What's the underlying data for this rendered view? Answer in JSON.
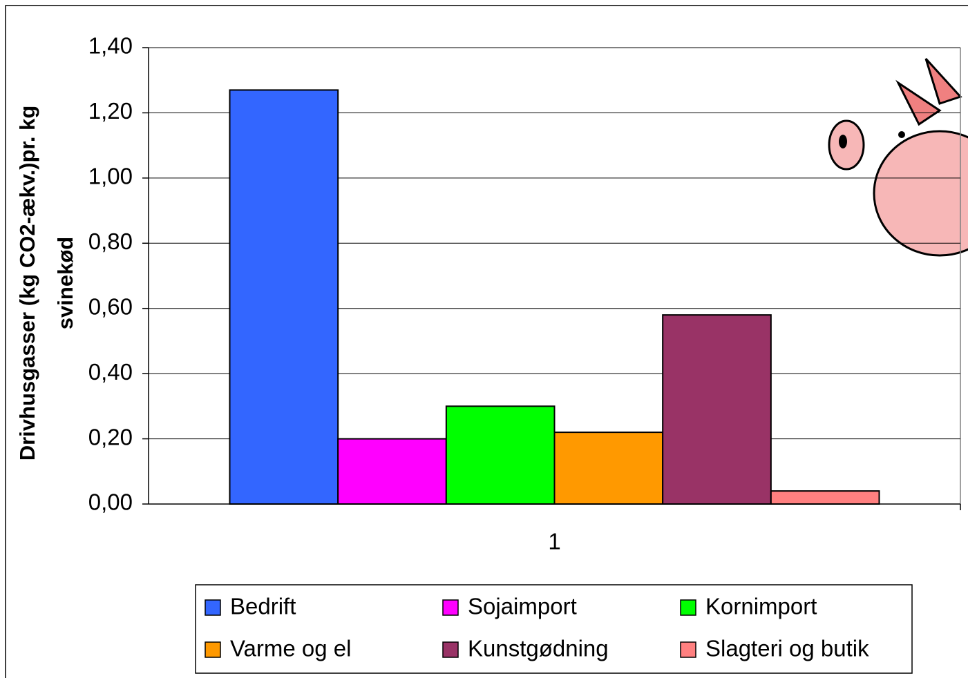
{
  "chart_data": {
    "type": "bar",
    "ylabel": [
      "Drivhusgasser (kg CO2-ækv.)pr. kg",
      "svinekød"
    ],
    "categories": [
      "1"
    ],
    "series": [
      {
        "name": "Bedrift",
        "color": "#3366ff",
        "values": [
          1.27
        ]
      },
      {
        "name": "Sojaimport",
        "color": "#ff00ff",
        "values": [
          0.2
        ]
      },
      {
        "name": "Kornimport",
        "color": "#00ff00",
        "values": [
          0.3
        ]
      },
      {
        "name": "Varme og el",
        "color": "#ff9900",
        "values": [
          0.22
        ]
      },
      {
        "name": "Kunstgødning",
        "color": "#993366",
        "values": [
          0.58
        ]
      },
      {
        "name": "Slagteri og butik",
        "color": "#ff8080",
        "values": [
          0.04
        ]
      }
    ],
    "ylim": [
      0,
      1.4
    ],
    "yticks": [
      {
        "value": 0,
        "label": "0,00"
      },
      {
        "value": 0.2,
        "label": "0,20"
      },
      {
        "value": 0.4,
        "label": "0,40"
      },
      {
        "value": 0.6,
        "label": "0,60"
      },
      {
        "value": 0.8,
        "label": "0,80"
      },
      {
        "value": 1.0,
        "label": "1,00"
      },
      {
        "value": 1.2,
        "label": "1,20"
      },
      {
        "value": 1.4,
        "label": "1,40"
      }
    ],
    "grid": true,
    "legend": "bottom"
  }
}
